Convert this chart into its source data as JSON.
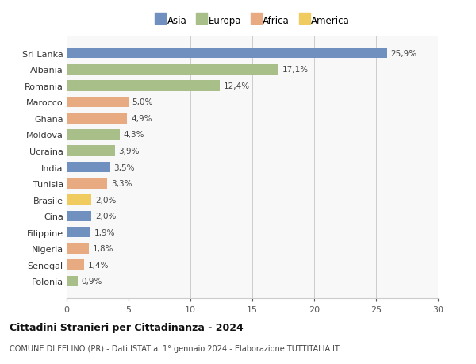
{
  "countries": [
    "Sri Lanka",
    "Albania",
    "Romania",
    "Marocco",
    "Ghana",
    "Moldova",
    "Ucraina",
    "India",
    "Tunisia",
    "Brasile",
    "Cina",
    "Filippine",
    "Nigeria",
    "Senegal",
    "Polonia"
  ],
  "values": [
    25.9,
    17.1,
    12.4,
    5.0,
    4.9,
    4.3,
    3.9,
    3.5,
    3.3,
    2.0,
    2.0,
    1.9,
    1.8,
    1.4,
    0.9
  ],
  "labels": [
    "25,9%",
    "17,1%",
    "12,4%",
    "5,0%",
    "4,9%",
    "4,3%",
    "3,9%",
    "3,5%",
    "3,3%",
    "2,0%",
    "2,0%",
    "1,9%",
    "1,8%",
    "1,4%",
    "0,9%"
  ],
  "continents": [
    "Asia",
    "Europa",
    "Europa",
    "Africa",
    "Africa",
    "Europa",
    "Europa",
    "Asia",
    "Africa",
    "America",
    "Asia",
    "Asia",
    "Africa",
    "Africa",
    "Europa"
  ],
  "colors": {
    "Asia": "#7090c0",
    "Europa": "#a8bf8a",
    "Africa": "#e8aa80",
    "America": "#f0cc60"
  },
  "title": "Cittadini Stranieri per Cittadinanza - 2024",
  "subtitle": "COMUNE DI FELINO (PR) - Dati ISTAT al 1° gennaio 2024 - Elaborazione TUTTITALIA.IT",
  "xlim": [
    0,
    30
  ],
  "xticks": [
    0,
    5,
    10,
    15,
    20,
    25,
    30
  ],
  "background_color": "#ffffff"
}
